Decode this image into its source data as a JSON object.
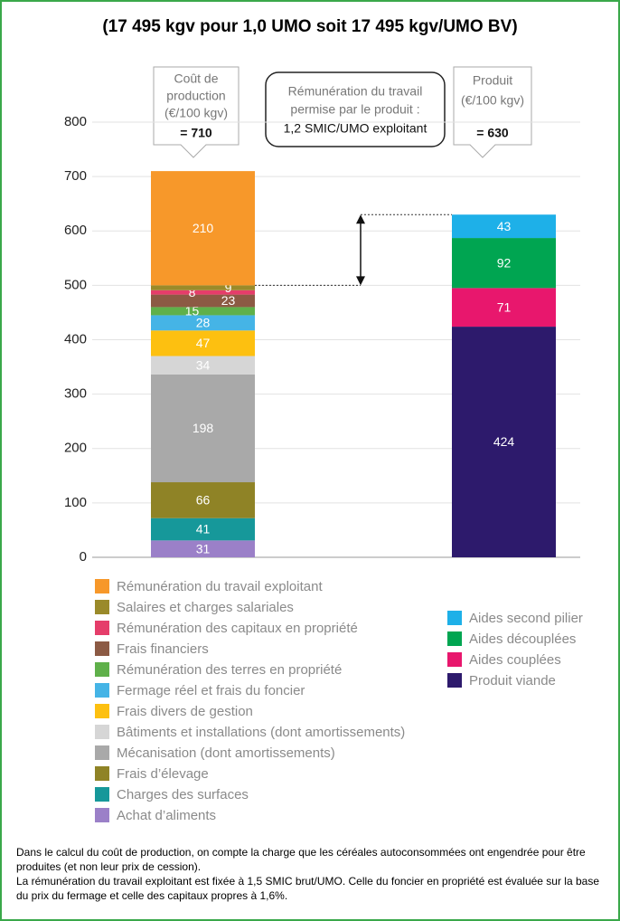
{
  "chart_data": {
    "type": "stacked_bar",
    "title": "(17 495 kgv pour 1,0 UMO soit 17 495 kgv/UMO BV)",
    "categories": [
      null,
      null
    ],
    "ylim": [
      0,
      800
    ],
    "yticks": [
      0,
      100,
      200,
      300,
      400,
      500,
      600,
      700,
      800
    ],
    "grid": true,
    "series": [
      {
        "name": "Achat d’aliments",
        "color": "#9b80c8",
        "values": [
          31,
          null
        ]
      },
      {
        "name": "Charges des surfaces",
        "color": "#16989a",
        "values": [
          41,
          null
        ]
      },
      {
        "name": "Frais d’élevage",
        "color": "#8f8326",
        "values": [
          66,
          null
        ]
      },
      {
        "name": "Mécanisation (dont amortissements)",
        "color": "#a9a9a9",
        "values": [
          198,
          null
        ]
      },
      {
        "name": "Bâtiments et installations (dont amortissements)",
        "color": "#d6d6d6",
        "values": [
          34,
          null
        ]
      },
      {
        "name": "Frais divers de gestion",
        "color": "#fdc010",
        "values": [
          47,
          null
        ]
      },
      {
        "name": "Fermage réel et frais du foncier",
        "color": "#45b4e6",
        "values": [
          28,
          null
        ]
      },
      {
        "name": "Rémunération des terres en propriété",
        "color": "#5fb04a",
        "values": [
          15,
          null
        ]
      },
      {
        "name": "Frais financiers",
        "color": "#8c5a44",
        "values": [
          23,
          null
        ]
      },
      {
        "name": "Rémunération des capitaux en propriété",
        "color": "#e53d6a",
        "values": [
          8,
          null
        ]
      },
      {
        "name": "Salaires et charges salariales",
        "color": "#9a8a2a",
        "values": [
          9,
          null
        ]
      },
      {
        "name": "Rémunération du travail exploitant",
        "color": "#f7982a",
        "values": [
          210,
          null
        ]
      },
      {
        "name": "Produit viande",
        "color": "#2d1a6c",
        "values": [
          null,
          424
        ]
      },
      {
        "name": "Aides couplées",
        "color": "#e8176d",
        "values": [
          null,
          71
        ]
      },
      {
        "name": "Aides découplées",
        "color": "#00a551",
        "values": [
          null,
          92
        ]
      },
      {
        "name": "Aides second pilier",
        "color": "#1eb0e8",
        "values": [
          null,
          43
        ]
      }
    ],
    "annotations": {
      "cost_box": [
        "Coût de",
        "production",
        "(€/100 kgv)",
        "= 710"
      ],
      "work_box": [
        "Rémunération du travail",
        "permise par le produit :",
        "1,2 SMIC/UMO exploitant"
      ],
      "product_box": [
        "Produit",
        "(€/100 kgv)",
        "= 630"
      ]
    },
    "footnote": [
      "Dans le calcul du coût de production, on compte la charge que les céréales autoconsommées ont engendrée pour être produites (et non leur prix de cession).",
      "La rémunération du travail exploitant est fixée à 1,5 SMIC brut/UMO. Celle du foncier en propriété est évaluée sur la base du prix du fermage et celle des capitaux propres à 1,6%."
    ]
  }
}
